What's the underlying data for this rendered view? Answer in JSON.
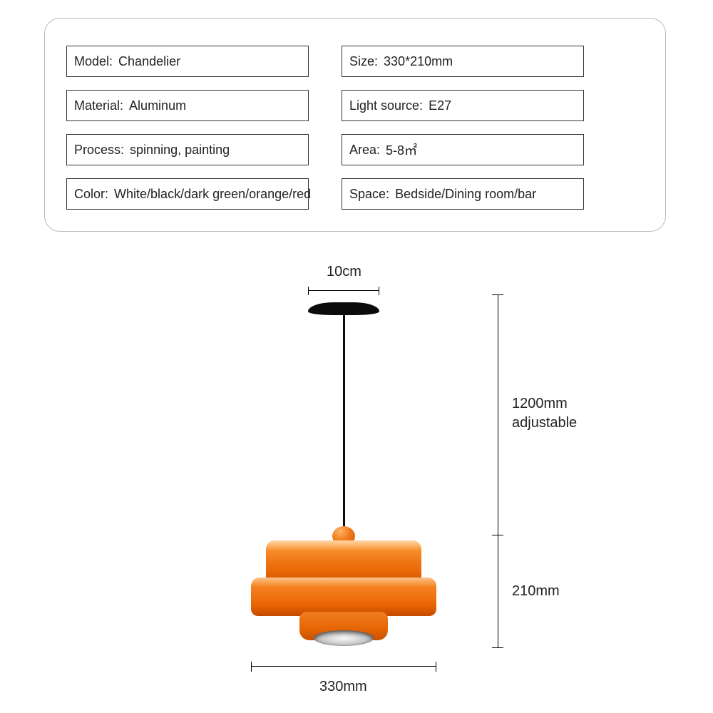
{
  "specs": {
    "model": {
      "label": "Model",
      "value": "Chandelier"
    },
    "size": {
      "label": "Size",
      "value": "330*210mm"
    },
    "material": {
      "label": "Material",
      "value": "Aluminum"
    },
    "light_source": {
      "label": "Light source",
      "value": "E27"
    },
    "process": {
      "label": "Process",
      "value": "spinning, painting"
    },
    "area": {
      "label": "Area",
      "value": "5-8㎡"
    },
    "color": {
      "label": "Color",
      "value": "White/black/dark green/orange/red"
    },
    "space": {
      "label": "Space",
      "value": "Bedside/Dining room/bar"
    }
  },
  "diagram": {
    "cap_width_label": "10cm",
    "cord_length_value": "1200mm",
    "cord_length_note": "adjustable",
    "shade_height_label": "210mm",
    "shade_width_label": "330mm",
    "colors": {
      "shade_orange_light": "#ffa23a",
      "shade_orange_mid": "#f07817",
      "shade_orange_dark": "#c94e00",
      "cap_black": "#0b0b0b",
      "line_black": "#000000",
      "text": "#222222",
      "panel_border": "#b8b8b8",
      "background": "#ffffff"
    },
    "measurements_mm": {
      "shade_width": 330,
      "shade_height": 210,
      "cord_max_length": 1200,
      "ceiling_cap_diameter_cm": 10
    }
  }
}
